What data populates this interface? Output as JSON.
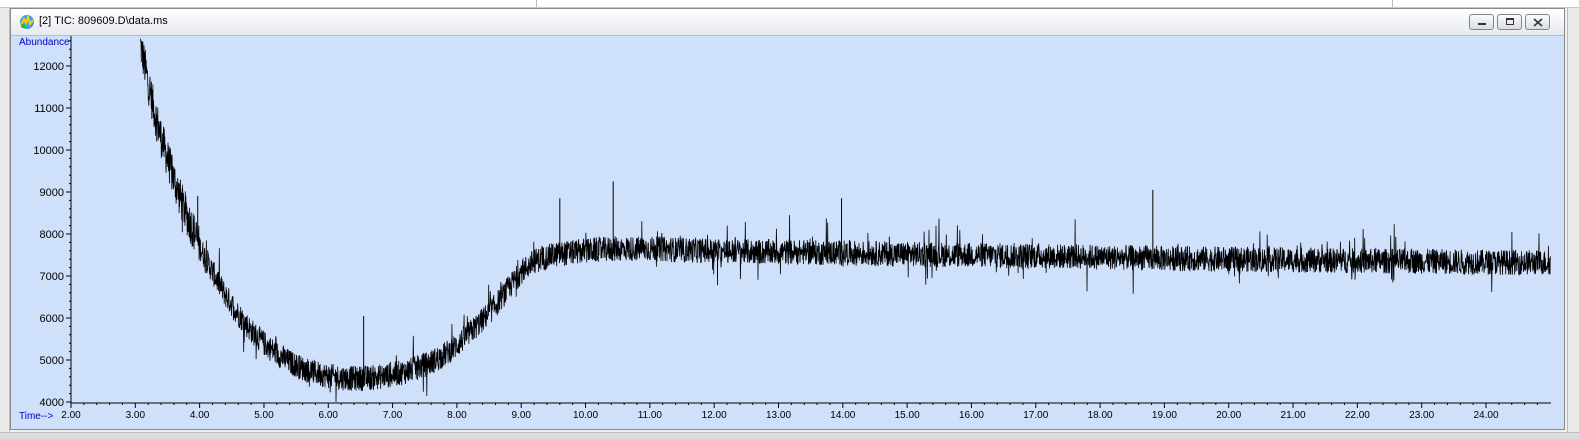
{
  "window": {
    "title": "[2] TIC: 809609.D\\data.ms",
    "icon": "chromatogram-app-icon",
    "buttons": [
      "minimize-icon",
      "restore-icon",
      "close-icon"
    ]
  },
  "chart_data": {
    "type": "line",
    "xlabel": "Time-->",
    "ylabel": "Abundance",
    "xlim": [
      2.0,
      25.0
    ],
    "ylim": [
      3900,
      12500
    ],
    "x_ticks": [
      "2.00",
      "3.00",
      "4.00",
      "5.00",
      "6.00",
      "7.00",
      "8.00",
      "9.00",
      "10.00",
      "11.00",
      "12.00",
      "13.00",
      "14.00",
      "15.00",
      "16.00",
      "17.00",
      "18.00",
      "19.00",
      "20.00",
      "21.00",
      "22.00",
      "23.00",
      "24.00"
    ],
    "y_ticks": [
      "4000",
      "5000",
      "6000",
      "7000",
      "8000",
      "9000",
      "10000",
      "11000",
      "12000"
    ],
    "grid": false,
    "series": [
      {
        "x": [
          3.08,
          3.2,
          3.3,
          3.4,
          3.5,
          3.6,
          3.7,
          3.8,
          3.9,
          4.0,
          4.2,
          4.4,
          4.6,
          4.8,
          5.0,
          5.2,
          5.4,
          5.6,
          5.8,
          6.0,
          6.2,
          6.4,
          6.6,
          6.8,
          7.0,
          7.2,
          7.4,
          7.6,
          7.8,
          8.0,
          8.2,
          8.4,
          8.6,
          8.8,
          9.0,
          9.2,
          9.5,
          10.0,
          10.5,
          11.0,
          11.5,
          12.0,
          12.5,
          13.0,
          14.0,
          15.0,
          16.0,
          17.0,
          18.0,
          19.0,
          20.0,
          21.0,
          22.0,
          23.0,
          24.0,
          25.0
        ],
        "y": [
          12500,
          11600,
          10900,
          10300,
          9800,
          9300,
          8850,
          8450,
          8100,
          7700,
          7100,
          6550,
          6100,
          5700,
          5400,
          5150,
          4950,
          4800,
          4700,
          4620,
          4580,
          4560,
          4570,
          4600,
          4650,
          4720,
          4820,
          4950,
          5120,
          5350,
          5650,
          5950,
          6300,
          6700,
          7100,
          7350,
          7500,
          7600,
          7650,
          7650,
          7620,
          7600,
          7580,
          7570,
          7550,
          7520,
          7500,
          7480,
          7450,
          7420,
          7400,
          7380,
          7360,
          7350,
          7330,
          7320
        ]
      }
    ],
    "spikes": [
      [
        3.97,
        8900
      ],
      [
        6.55,
        6050
      ],
      [
        9.6,
        8850
      ],
      [
        10.43,
        9250
      ],
      [
        13.98,
        8850
      ],
      [
        18.82,
        9050
      ]
    ]
  }
}
